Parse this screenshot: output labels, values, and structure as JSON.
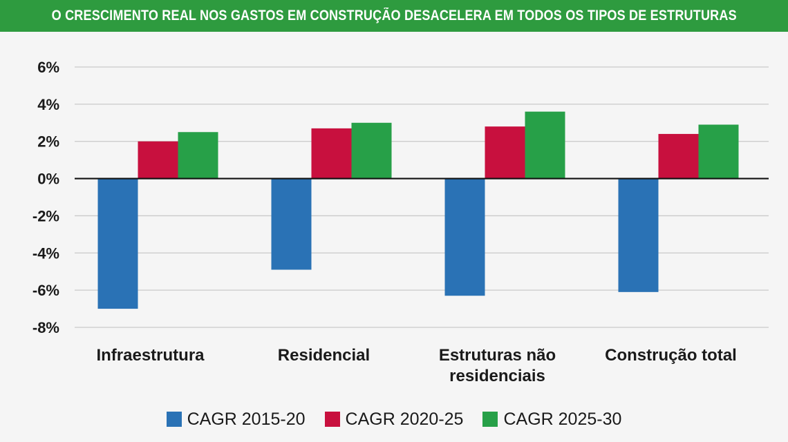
{
  "chart_data": {
    "type": "bar",
    "title": "O CRESCIMENTO REAL NOS GASTOS EM CONSTRUÇÃO DESACELERA EM TODOS OS TIPOS DE ESTRUTURAS",
    "categories": [
      [
        "Infraestrutura"
      ],
      [
        "Residencial"
      ],
      [
        "Estruturas não",
        "residenciais"
      ],
      [
        "Construção total"
      ]
    ],
    "series": [
      {
        "name": "CAGR 2015-20",
        "color": "#2a72b5",
        "values": [
          -7.0,
          -4.9,
          -6.3,
          -6.1
        ]
      },
      {
        "name": "CAGR 2020-25",
        "color": "#c8103e",
        "values": [
          2.0,
          2.7,
          2.8,
          2.4
        ]
      },
      {
        "name": "CAGR 2025-30",
        "color": "#27a048",
        "values": [
          2.5,
          3.0,
          3.6,
          2.9
        ]
      }
    ],
    "ylim": [
      -8,
      6
    ],
    "yticks": [
      6,
      4,
      2,
      0,
      -2,
      -4,
      -6,
      -8
    ],
    "ytick_labels": [
      "6%",
      "4%",
      "2%",
      "0%",
      "-2%",
      "-4%",
      "-6%",
      "-8%"
    ],
    "grid": true,
    "legend_position": "bottom"
  }
}
